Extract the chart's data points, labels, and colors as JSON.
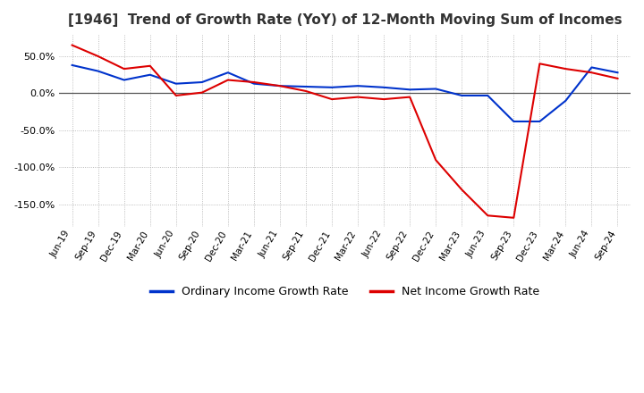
{
  "title": "[1946]  Trend of Growth Rate (YoY) of 12-Month Moving Sum of Incomes",
  "title_fontsize": 11,
  "background_color": "#ffffff",
  "plot_bg_color": "#ffffff",
  "grid_color": "#aaaaaa",
  "line_color_blue": "#0033cc",
  "line_color_red": "#dd0000",
  "ylim": [
    -180,
    80
  ],
  "yticks": [
    -150,
    -100,
    -50,
    0,
    50
  ],
  "legend_labels": [
    "Ordinary Income Growth Rate",
    "Net Income Growth Rate"
  ],
  "x_labels": [
    "Jun-19",
    "Sep-19",
    "Dec-19",
    "Mar-20",
    "Jun-20",
    "Sep-20",
    "Dec-20",
    "Mar-21",
    "Jun-21",
    "Sep-21",
    "Dec-21",
    "Mar-22",
    "Jun-22",
    "Sep-22",
    "Dec-22",
    "Mar-23",
    "Jun-23",
    "Sep-23",
    "Dec-23",
    "Mar-24",
    "Jun-24",
    "Sep-24"
  ],
  "ordinary_income": [
    38,
    30,
    18,
    25,
    13,
    15,
    28,
    13,
    10,
    9,
    8,
    10,
    8,
    5,
    6,
    -3,
    -3,
    -38,
    -38,
    -10,
    35,
    28
  ],
  "net_income": [
    65,
    50,
    33,
    37,
    -3,
    1,
    18,
    15,
    10,
    3,
    -8,
    -5,
    -8,
    -5,
    -90,
    -130,
    -165,
    -168,
    40,
    33,
    28,
    20
  ]
}
